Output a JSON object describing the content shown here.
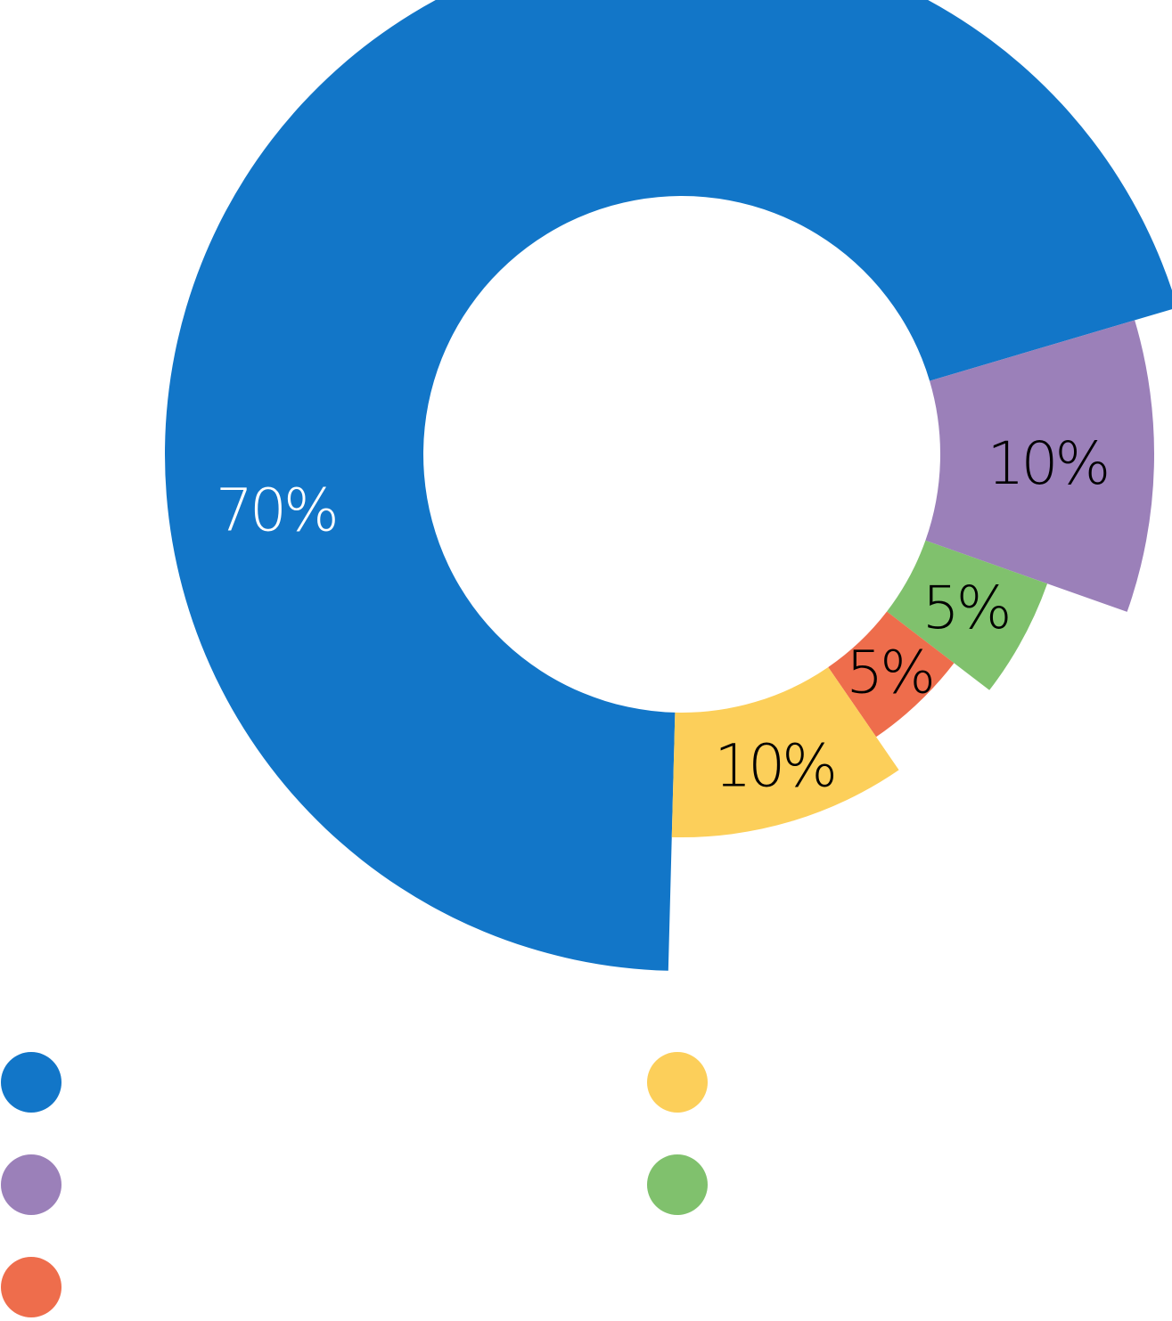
{
  "chart_data": {
    "type": "pie",
    "variant": "donut",
    "title": "",
    "slices": [
      {
        "value": 70,
        "label": "70%",
        "color": "#1276C8",
        "label_color": "#FFFFFF"
      },
      {
        "value": 10,
        "label": "10%",
        "color": "#9B80B9",
        "label_color": "#000000"
      },
      {
        "value": 5,
        "label": "5%",
        "color": "#80C16D",
        "label_color": "#000000"
      },
      {
        "value": 5,
        "label": "5%",
        "color": "#EE6D4C",
        "label_color": "#000000"
      },
      {
        "value": 10,
        "label": "10%",
        "color": "#FCCF5A",
        "label_color": "#000000"
      }
    ],
    "legend": {
      "placement": "bottom",
      "entries": [
        {
          "label": "",
          "color": "#1276C8"
        },
        {
          "label": "",
          "color": "#9B80B9"
        },
        {
          "label": "",
          "color": "#EE6D4C"
        },
        {
          "label": "",
          "color": "#FCCF5A"
        },
        {
          "label": "",
          "color": "#80C16D"
        }
      ]
    }
  }
}
